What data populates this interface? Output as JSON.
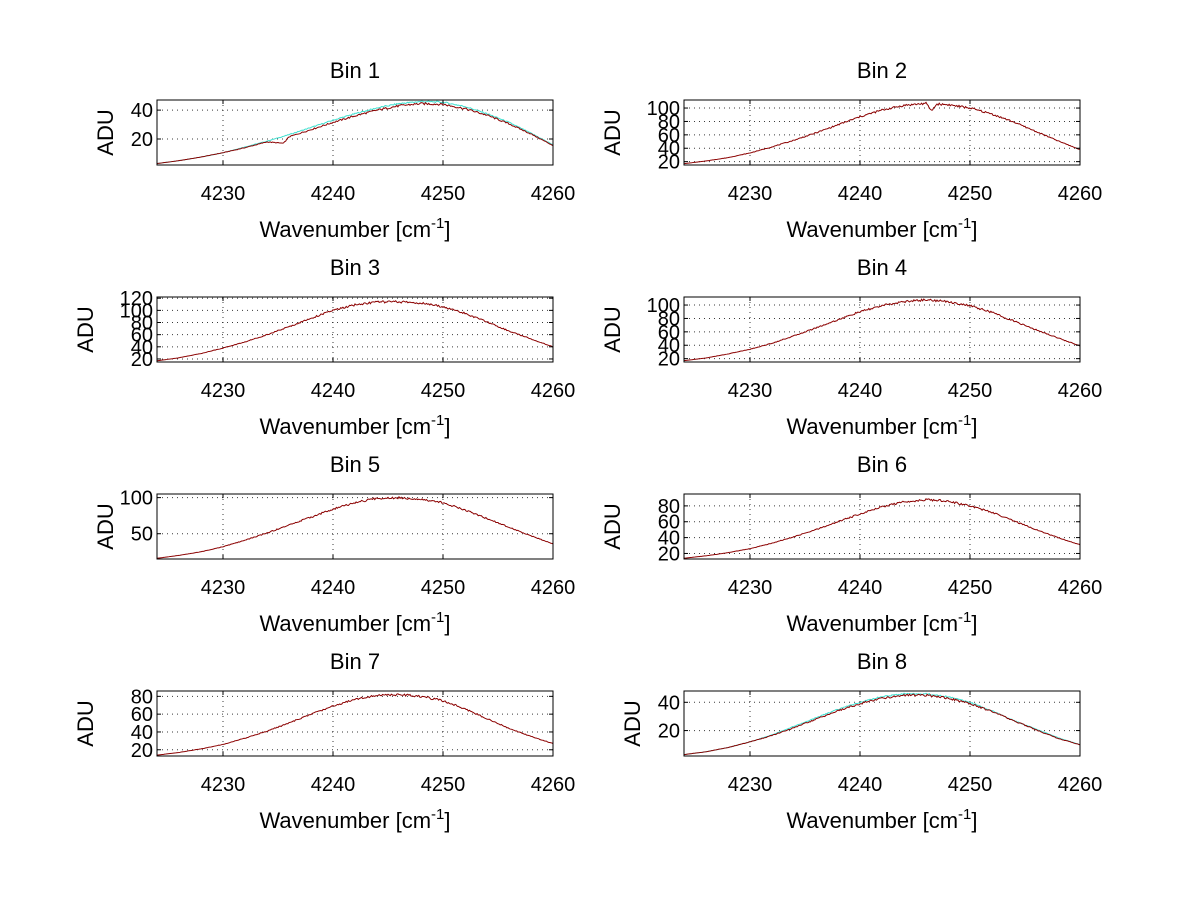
{
  "figure": {
    "background": "#ffffff"
  },
  "chart_data": [
    {
      "type": "line",
      "title": "Bin 1",
      "xlabel": "Wavenumber [cm-1]",
      "ylabel": "ADU",
      "xlim": [
        4224,
        4260
      ],
      "ylim": [
        2,
        47
      ],
      "xticks": [
        4230,
        4240,
        4250,
        4260
      ],
      "yticks": [
        20,
        40
      ],
      "grid": true,
      "series": [
        {
          "color": "#40e0d0",
          "x": [
            4224,
            4226,
            4228,
            4230,
            4232,
            4234,
            4236,
            4238,
            4240,
            4242,
            4244,
            4246,
            4248,
            4250,
            4252,
            4254,
            4256,
            4258,
            4260
          ],
          "y": [
            3,
            5,
            7.5,
            10.5,
            14.5,
            18.5,
            23,
            28,
            33,
            37.5,
            41.5,
            44.5,
            46,
            45.5,
            42.5,
            37.5,
            31.5,
            24,
            16
          ]
        },
        {
          "color": "#8b0000",
          "x": [
            4224,
            4226,
            4228,
            4230,
            4232,
            4234,
            4235.5,
            4236,
            4238,
            4240,
            4242,
            4244,
            4246,
            4248,
            4250,
            4252,
            4254,
            4256,
            4258,
            4260
          ],
          "y": [
            3,
            5,
            7.5,
            10.5,
            14,
            18,
            17,
            21.5,
            26.5,
            31.5,
            36,
            40,
            43,
            44.5,
            44,
            41,
            36.5,
            30.5,
            23.5,
            15.5
          ]
        }
      ]
    },
    {
      "type": "line",
      "title": "Bin 2",
      "xlabel": "Wavenumber [cm-1]",
      "ylabel": "ADU",
      "xlim": [
        4224,
        4260
      ],
      "ylim": [
        15,
        112
      ],
      "xticks": [
        4230,
        4240,
        4250,
        4260
      ],
      "yticks": [
        20,
        40,
        60,
        80,
        100
      ],
      "grid": true,
      "series": [
        {
          "color": "#8b0000",
          "x": [
            4224,
            4226,
            4228,
            4230,
            4232,
            4234,
            4236,
            4238,
            4240,
            4242,
            4244,
            4246,
            4246.5,
            4247,
            4248,
            4250,
            4252,
            4254,
            4256,
            4258,
            4260
          ],
          "y": [
            17,
            21,
            26,
            33,
            42,
            52,
            63,
            75,
            87,
            97,
            104,
            107,
            96,
            106,
            105,
            100,
            91,
            79,
            65,
            51,
            38
          ]
        }
      ]
    },
    {
      "type": "line",
      "title": "Bin 3",
      "xlabel": "Wavenumber [cm-1]",
      "ylabel": "ADU",
      "xlim": [
        4224,
        4260
      ],
      "ylim": [
        15,
        122
      ],
      "xticks": [
        4230,
        4240,
        4250,
        4260
      ],
      "yticks": [
        20,
        40,
        60,
        80,
        100,
        120
      ],
      "grid": true,
      "series": [
        {
          "color": "#8b0000",
          "x": [
            4224,
            4226,
            4228,
            4230,
            4232,
            4234,
            4236,
            4238,
            4240,
            4242,
            4244,
            4246,
            4248,
            4250,
            4252,
            4254,
            4256,
            4258,
            4260
          ],
          "y": [
            17,
            22,
            29,
            38,
            48,
            60,
            73,
            87,
            100,
            109,
            114,
            114,
            112,
            106,
            95,
            81,
            66,
            53,
            40
          ]
        }
      ]
    },
    {
      "type": "line",
      "title": "Bin 4",
      "xlabel": "Wavenumber [cm-1]",
      "ylabel": "ADU",
      "xlim": [
        4224,
        4260
      ],
      "ylim": [
        15,
        112
      ],
      "xticks": [
        4230,
        4240,
        4250,
        4260
      ],
      "yticks": [
        20,
        40,
        60,
        80,
        100
      ],
      "grid": true,
      "series": [
        {
          "color": "#8b0000",
          "x": [
            4224,
            4226,
            4228,
            4230,
            4232,
            4234,
            4236,
            4238,
            4240,
            4242,
            4244,
            4246,
            4248,
            4250,
            4252,
            4254,
            4256,
            4258,
            4260
          ],
          "y": [
            17,
            21,
            27,
            34,
            43,
            54,
            66,
            78,
            90,
            99,
            105,
            108,
            105,
            99,
            89,
            76,
            63,
            51,
            39
          ]
        }
      ]
    },
    {
      "type": "line",
      "title": "Bin 5",
      "xlabel": "Wavenumber [cm-1]",
      "ylabel": "ADU",
      "xlim": [
        4224,
        4260
      ],
      "ylim": [
        15,
        105
      ],
      "xticks": [
        4230,
        4240,
        4250,
        4260
      ],
      "yticks": [
        50,
        100
      ],
      "grid": true,
      "series": [
        {
          "color": "#8b0000",
          "x": [
            4224,
            4226,
            4228,
            4230,
            4232,
            4234,
            4236,
            4238,
            4240,
            4242,
            4244,
            4246,
            4248,
            4250,
            4252,
            4254,
            4256,
            4258,
            4260
          ],
          "y": [
            16,
            20,
            25,
            32,
            41,
            51,
            62,
            73,
            84,
            93,
            99,
            100,
            98,
            93,
            83,
            71,
            59,
            47,
            36
          ]
        }
      ]
    },
    {
      "type": "line",
      "title": "Bin 6",
      "xlabel": "Wavenumber [cm-1]",
      "ylabel": "ADU",
      "xlim": [
        4224,
        4260
      ],
      "ylim": [
        13,
        95
      ],
      "xticks": [
        4230,
        4240,
        4250,
        4260
      ],
      "yticks": [
        20,
        40,
        60,
        80
      ],
      "grid": true,
      "series": [
        {
          "color": "#8b0000",
          "x": [
            4224,
            4226,
            4228,
            4230,
            4232,
            4234,
            4236,
            4238,
            4240,
            4242,
            4244,
            4246,
            4248,
            4250,
            4252,
            4254,
            4256,
            4258,
            4260
          ],
          "y": [
            14,
            17,
            21,
            26,
            33,
            41,
            50,
            60,
            70,
            79,
            85,
            88,
            86,
            80,
            72,
            61,
            50,
            40,
            31
          ]
        }
      ]
    },
    {
      "type": "line",
      "title": "Bin 7",
      "xlabel": "Wavenumber [cm-1]",
      "ylabel": "ADU",
      "xlim": [
        4224,
        4260
      ],
      "ylim": [
        13,
        86
      ],
      "xticks": [
        4230,
        4240,
        4250,
        4260
      ],
      "yticks": [
        20,
        40,
        60,
        80
      ],
      "grid": true,
      "series": [
        {
          "color": "#8b0000",
          "x": [
            4224,
            4226,
            4228,
            4230,
            4232,
            4234,
            4236,
            4238,
            4240,
            4242,
            4244,
            4246,
            4248,
            4250,
            4252,
            4254,
            4256,
            4258,
            4260
          ],
          "y": [
            14,
            17,
            21,
            26,
            33,
            41,
            50,
            60,
            69,
            77,
            81,
            82,
            80,
            75,
            66,
            55,
            44,
            35,
            27
          ]
        }
      ]
    },
    {
      "type": "line",
      "title": "Bin 8",
      "xlabel": "Wavenumber [cm-1]",
      "ylabel": "ADU",
      "xlim": [
        4224,
        4260
      ],
      "ylim": [
        2,
        48
      ],
      "xticks": [
        4230,
        4240,
        4250,
        4260
      ],
      "yticks": [
        20,
        40
      ],
      "grid": true,
      "series": [
        {
          "color": "#40e0d0",
          "x": [
            4224,
            4226,
            4228,
            4230,
            4232,
            4234,
            4236,
            4238,
            4240,
            4242,
            4244,
            4246,
            4248,
            4250,
            4252,
            4254,
            4256,
            4258,
            4260
          ],
          "y": [
            3,
            5,
            8,
            12,
            17,
            23,
            29,
            35,
            40,
            44,
            46,
            46,
            44,
            40,
            34,
            27,
            21,
            15,
            10
          ]
        },
        {
          "color": "#8b0000",
          "x": [
            4224,
            4226,
            4228,
            4230,
            4232,
            4234,
            4236,
            4238,
            4240,
            4242,
            4244,
            4246,
            4248,
            4250,
            4252,
            4254,
            4256,
            4258,
            4260
          ],
          "y": [
            3,
            5,
            8,
            12,
            16.5,
            22,
            28,
            34,
            39,
            43,
            45,
            45,
            43,
            39,
            33.5,
            27,
            20.5,
            14.5,
            10
          ]
        }
      ]
    }
  ]
}
